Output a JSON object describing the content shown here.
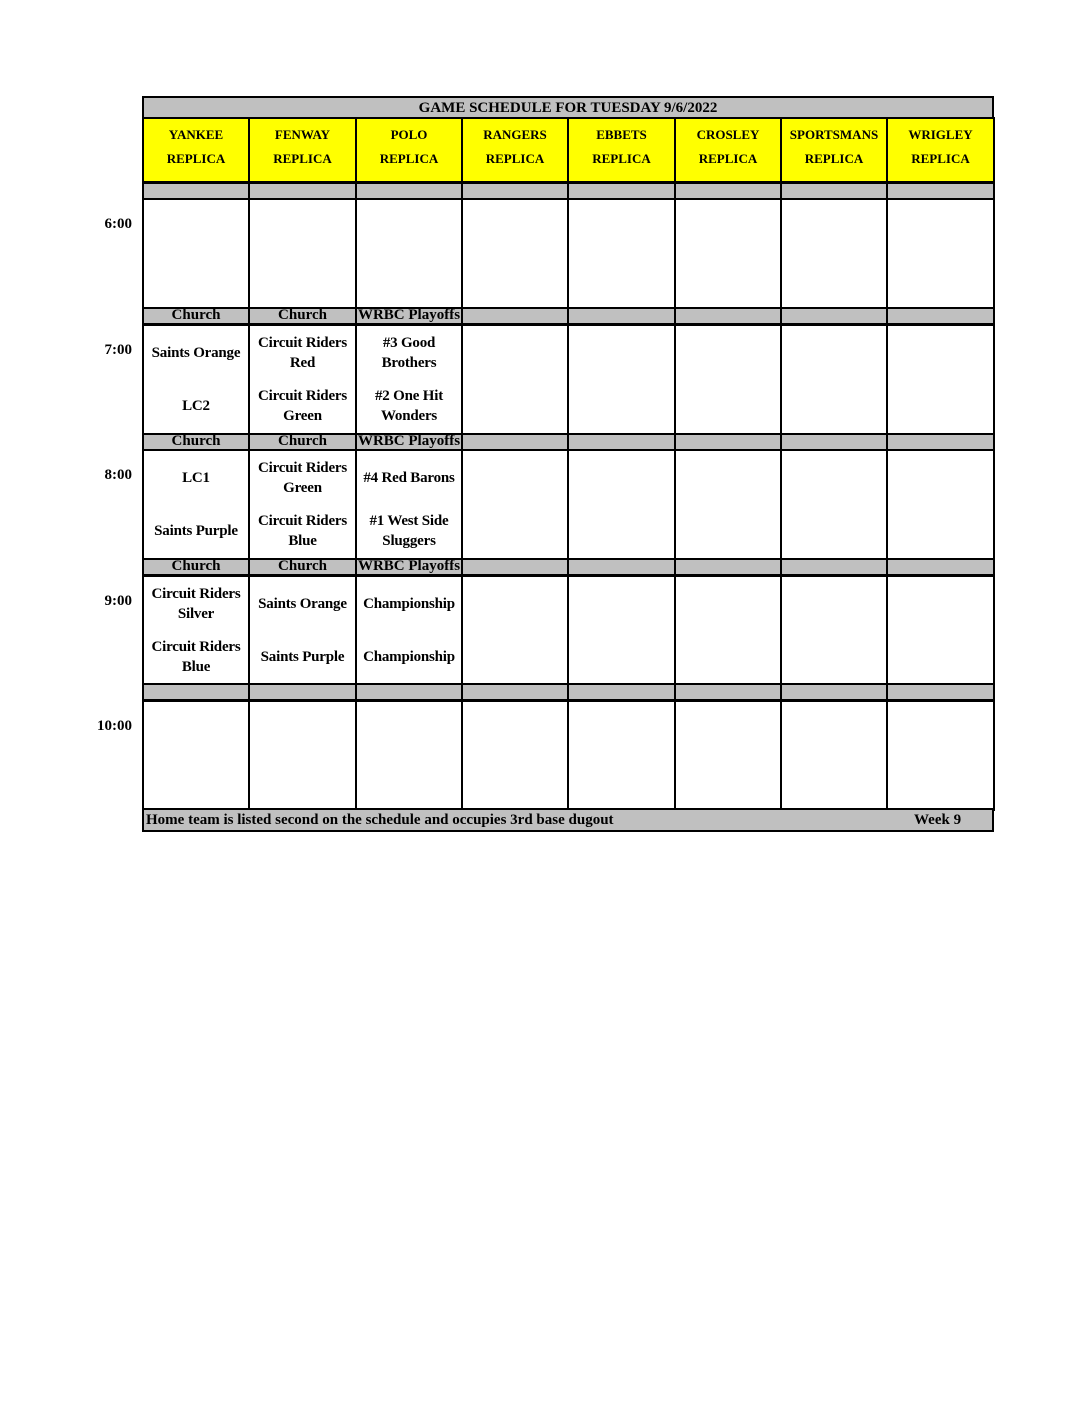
{
  "title": "GAME SCHEDULE FOR TUESDAY 9/6/2022",
  "fields": [
    {
      "name": "YANKEE",
      "sub": "REPLICA"
    },
    {
      "name": "FENWAY",
      "sub": "REPLICA"
    },
    {
      "name": "POLO",
      "sub": "REPLICA"
    },
    {
      "name": "RANGERS",
      "sub": "REPLICA"
    },
    {
      "name": "EBBETS",
      "sub": "REPLICA"
    },
    {
      "name": "CROSLEY",
      "sub": "REPLICA"
    },
    {
      "name": "SPORTSMANS",
      "sub": "REPLICA"
    },
    {
      "name": "WRIGLEY",
      "sub": "REPLICA"
    }
  ],
  "slots": [
    {
      "time": "6:00",
      "labels": [
        "",
        "",
        "",
        "",
        "",
        "",
        "",
        ""
      ],
      "games": [
        [
          "",
          ""
        ],
        [
          "",
          ""
        ],
        [
          "",
          ""
        ],
        [
          "",
          ""
        ],
        [
          "",
          ""
        ],
        [
          "",
          ""
        ],
        [
          "",
          ""
        ],
        [
          "",
          ""
        ]
      ]
    },
    {
      "time": "7:00",
      "labels": [
        "Church",
        "Church",
        "WRBC Playoffs",
        "",
        "",
        "",
        "",
        ""
      ],
      "games": [
        [
          "Saints Orange",
          "LC2"
        ],
        [
          "Circuit Riders Red",
          "Circuit Riders Green"
        ],
        [
          "#3 Good Brothers",
          "#2 One Hit Wonders"
        ],
        [
          "",
          ""
        ],
        [
          "",
          ""
        ],
        [
          "",
          ""
        ],
        [
          "",
          ""
        ],
        [
          "",
          ""
        ]
      ]
    },
    {
      "time": "8:00",
      "labels": [
        "Church",
        "Church",
        "WRBC Playoffs",
        "",
        "",
        "",
        "",
        ""
      ],
      "games": [
        [
          "LC1",
          "Saints Purple"
        ],
        [
          "Circuit Riders Green",
          "Circuit Riders Blue"
        ],
        [
          "#4 Red Barons",
          "#1 West Side Sluggers"
        ],
        [
          "",
          ""
        ],
        [
          "",
          ""
        ],
        [
          "",
          ""
        ],
        [
          "",
          ""
        ],
        [
          "",
          ""
        ]
      ]
    },
    {
      "time": "9:00",
      "labels": [
        "Church",
        "Church",
        "WRBC Playoffs",
        "",
        "",
        "",
        "",
        ""
      ],
      "games": [
        [
          "Circuit Riders Silver",
          "Circuit Riders Blue"
        ],
        [
          "Saints Orange",
          "Saints Purple"
        ],
        [
          "Championship",
          "Championship"
        ],
        [
          "",
          ""
        ],
        [
          "",
          ""
        ],
        [
          "",
          ""
        ],
        [
          "",
          ""
        ],
        [
          "",
          ""
        ]
      ]
    },
    {
      "time": "10:00",
      "labels": [
        "",
        "",
        "",
        "",
        "",
        "",
        "",
        ""
      ],
      "games": [
        [
          "",
          ""
        ],
        [
          "",
          ""
        ],
        [
          "",
          ""
        ],
        [
          "",
          ""
        ],
        [
          "",
          ""
        ],
        [
          "",
          ""
        ],
        [
          "",
          ""
        ],
        [
          "",
          ""
        ]
      ]
    }
  ],
  "footer": {
    "note": "Home team is listed second on the schedule and occupies 3rd base dugout",
    "week": "Week 9"
  },
  "colors": {
    "header_bg": "#ffff00",
    "band_bg": "#c0c0c0"
  }
}
